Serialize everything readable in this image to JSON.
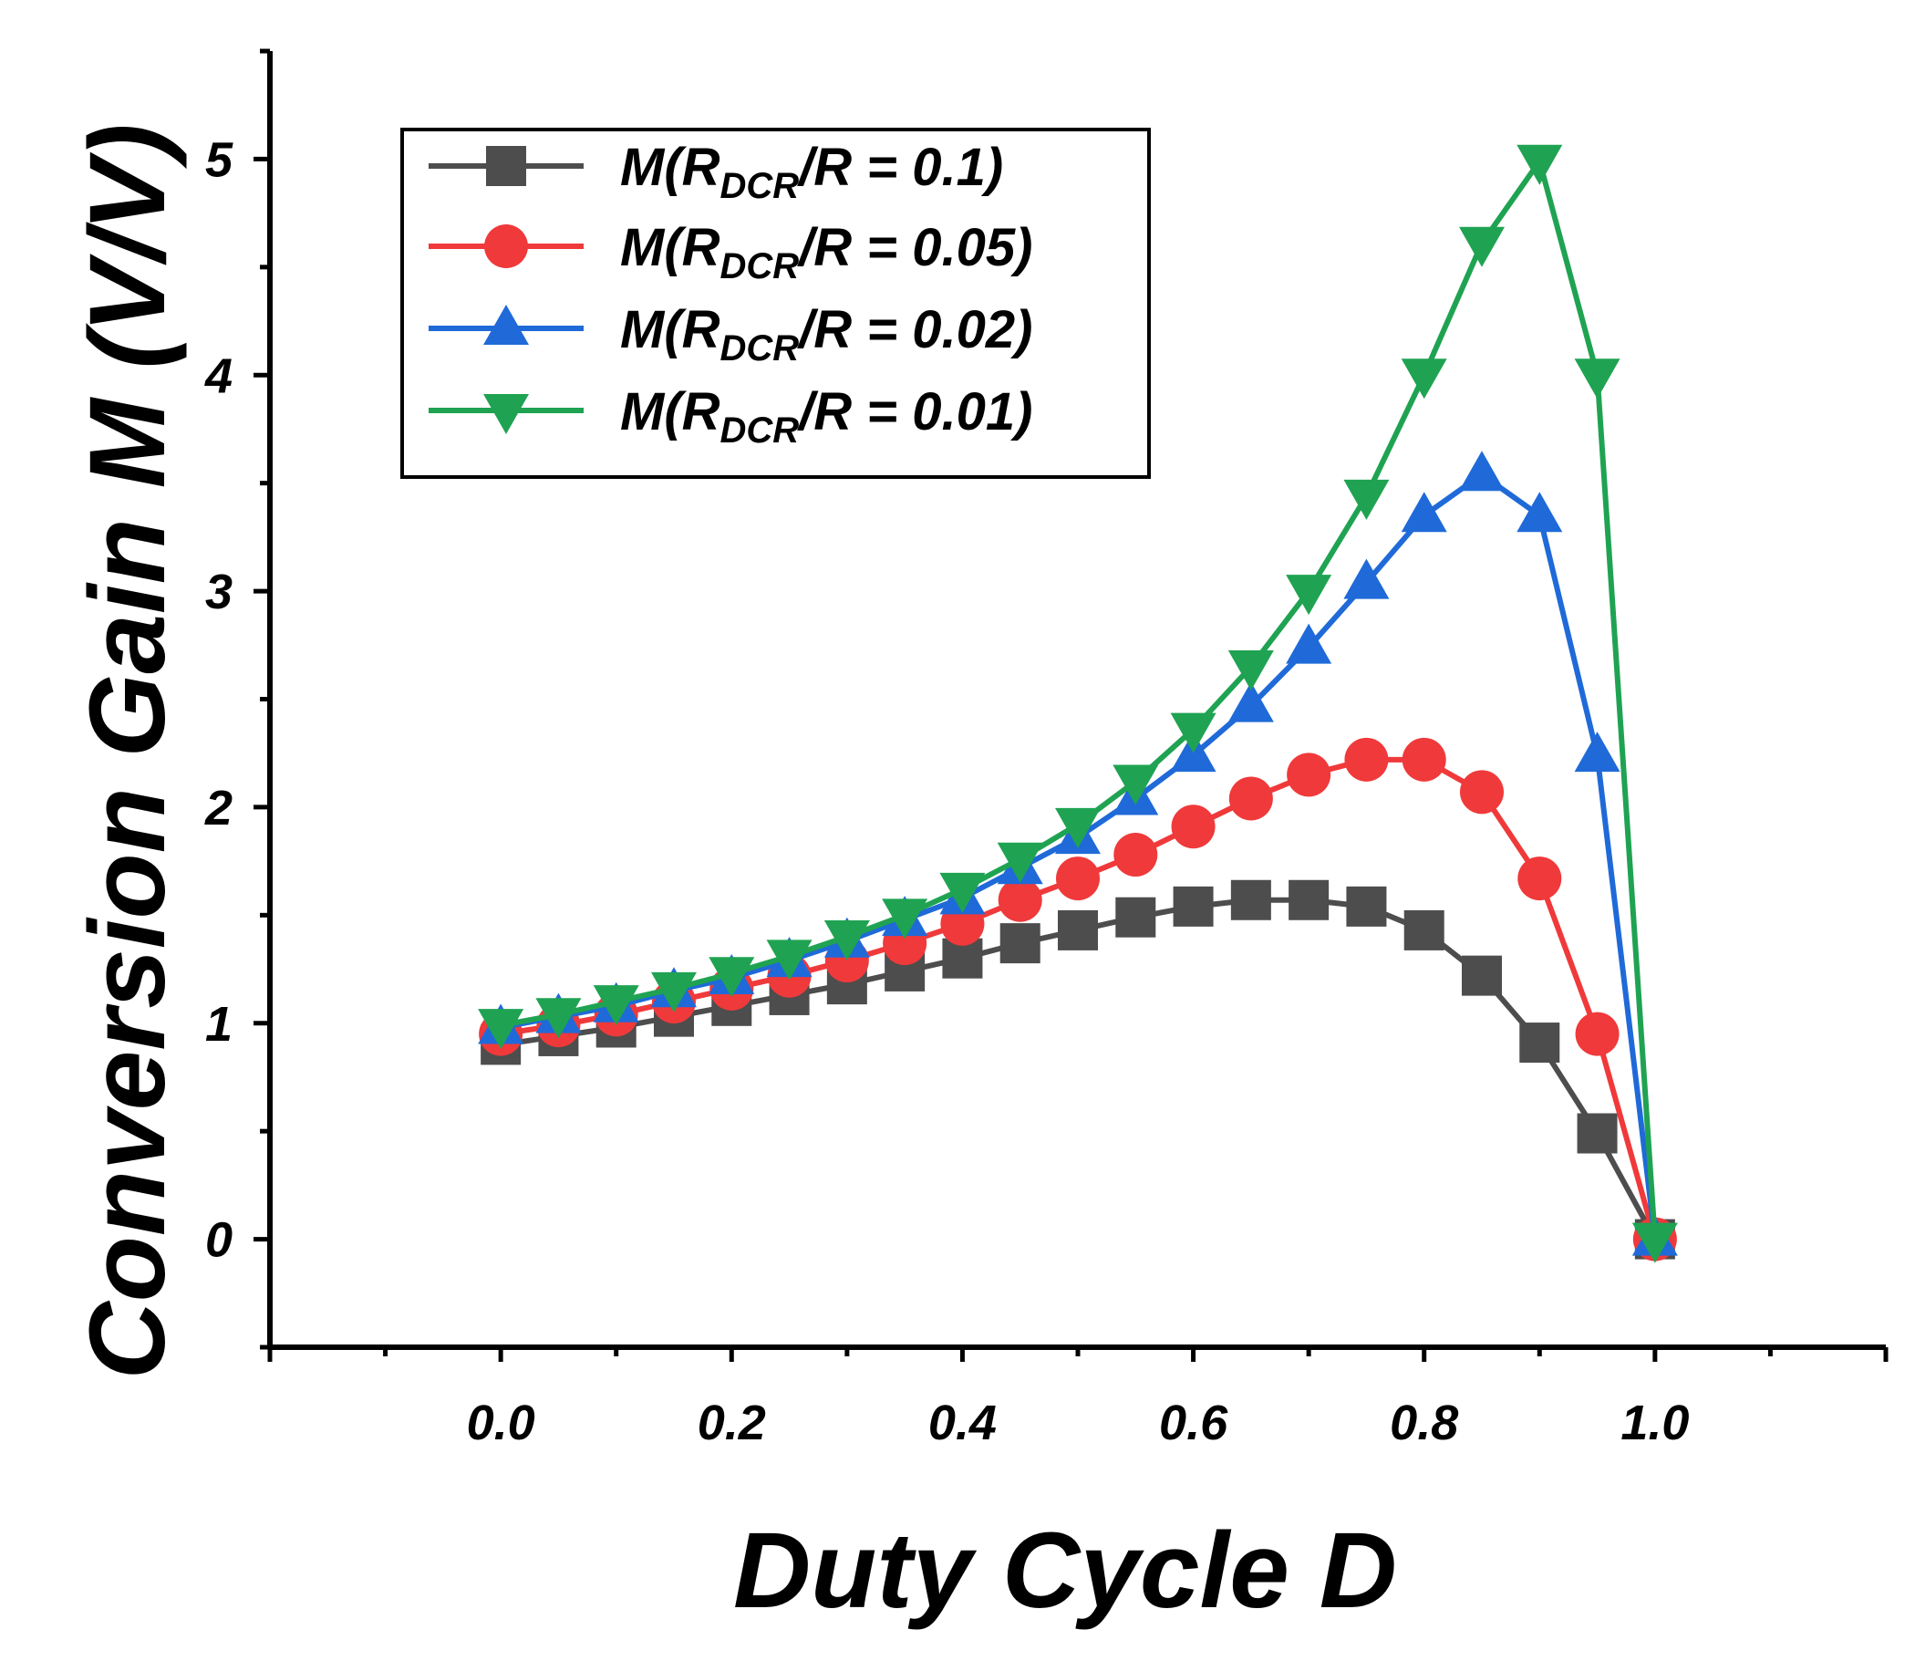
{
  "chart_data": {
    "type": "line",
    "title": "",
    "xlabel": "Duty Cycle D",
    "ylabel": "Conversion Gain M (V/V)",
    "xlim": [
      -0.2,
      1.2
    ],
    "ylim": [
      -0.5,
      5.5
    ],
    "x_ticks": [
      "0.0",
      "0.2",
      "0.4",
      "0.6",
      "0.8",
      "1.0"
    ],
    "y_ticks": [
      "0",
      "1",
      "2",
      "3",
      "4",
      "5"
    ],
    "legend_position": "top-left",
    "x": [
      0.0,
      0.05,
      0.1,
      0.15,
      0.2,
      0.25,
      0.3,
      0.35,
      0.4,
      0.45,
      0.5,
      0.55,
      0.6,
      0.65,
      0.7,
      0.75,
      0.8,
      0.85,
      0.9,
      0.95,
      1.0
    ],
    "series": [
      {
        "name": "M(RDCR/R = 0.1)",
        "legend_prefix": "M(R",
        "legend_sub": "DCR",
        "legend_suffix": "/R = 0.1)",
        "color": "#4d4d4d",
        "marker": "square",
        "values": [
          0.9,
          0.94,
          0.98,
          1.03,
          1.08,
          1.13,
          1.18,
          1.24,
          1.3,
          1.37,
          1.43,
          1.49,
          1.54,
          1.57,
          1.57,
          1.54,
          1.43,
          1.22,
          0.91,
          0.49,
          0.0
        ]
      },
      {
        "name": "M(RDCR/R = 0.05)",
        "legend_prefix": "M(R",
        "legend_sub": "DCR",
        "legend_suffix": "/R = 0.05)",
        "color": "#f0393a",
        "marker": "circle",
        "values": [
          0.95,
          0.99,
          1.04,
          1.1,
          1.16,
          1.22,
          1.29,
          1.37,
          1.46,
          1.57,
          1.67,
          1.78,
          1.91,
          2.04,
          2.15,
          2.22,
          2.22,
          2.07,
          1.67,
          0.95,
          0.0
        ]
      },
      {
        "name": "M(RDCR/R = 0.02)",
        "legend_prefix": "M(R",
        "legend_sub": "DCR",
        "legend_suffix": "/R = 0.02)",
        "color": "#1f6ad8",
        "marker": "triangle-up",
        "values": [
          0.98,
          1.03,
          1.08,
          1.15,
          1.21,
          1.29,
          1.38,
          1.48,
          1.58,
          1.72,
          1.86,
          2.04,
          2.24,
          2.47,
          2.74,
          3.04,
          3.35,
          3.54,
          3.35,
          2.24,
          0.0
        ]
      },
      {
        "name": "M(RDCR/R = 0.01)",
        "legend_prefix": "M(R",
        "legend_sub": "DCR",
        "legend_suffix": "/R = 0.01)",
        "color": "#1fa352",
        "marker": "triangle-down",
        "values": [
          0.99,
          1.04,
          1.1,
          1.16,
          1.23,
          1.31,
          1.4,
          1.5,
          1.62,
          1.76,
          1.92,
          2.12,
          2.36,
          2.65,
          3.0,
          3.44,
          4.0,
          4.61,
          4.99,
          4.0,
          0.0
        ]
      }
    ]
  }
}
